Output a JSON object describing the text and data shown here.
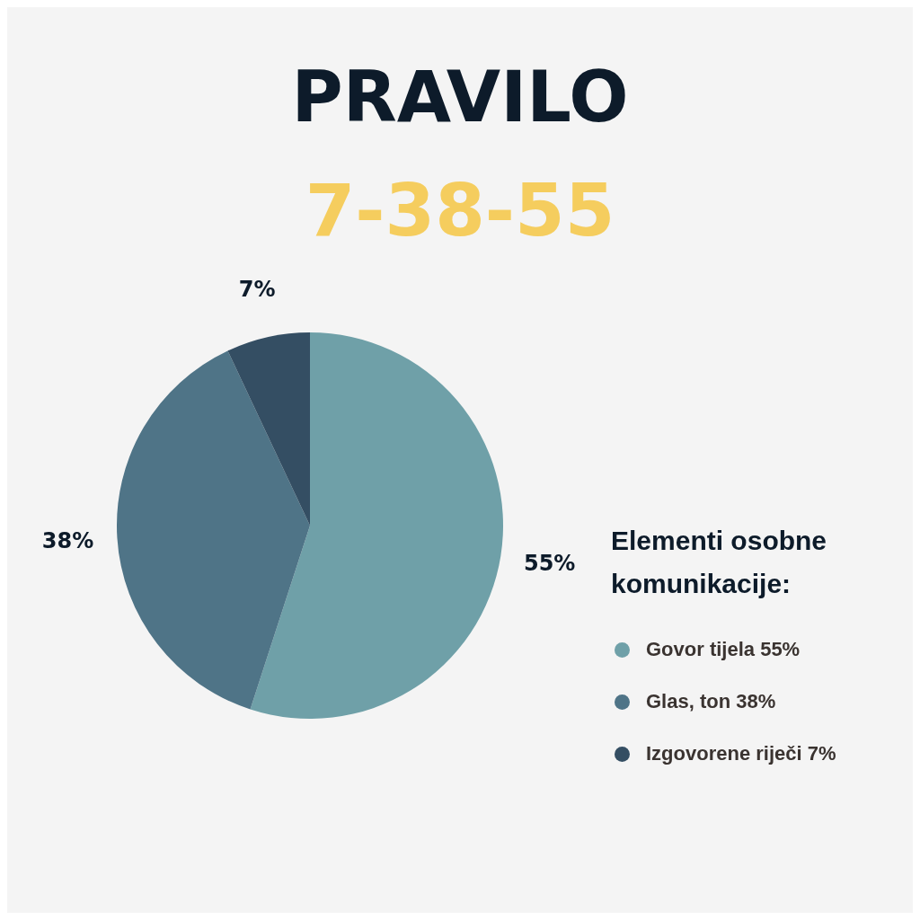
{
  "chart_data": {
    "type": "pie",
    "title": "PRAVILO",
    "subtitle": "7-38-55",
    "categories": [
      "Govor tijela 55%",
      "Glas, ton 38%",
      "Izgovorene riječi 7%"
    ],
    "values": [
      55,
      38,
      7
    ],
    "colors": [
      "#6fa0a8",
      "#4f7487",
      "#344e63"
    ],
    "value_labels": [
      "55%",
      "38%",
      "7%"
    ],
    "legend": "right",
    "legend_title": "Elementi osobne komunikacije:"
  }
}
